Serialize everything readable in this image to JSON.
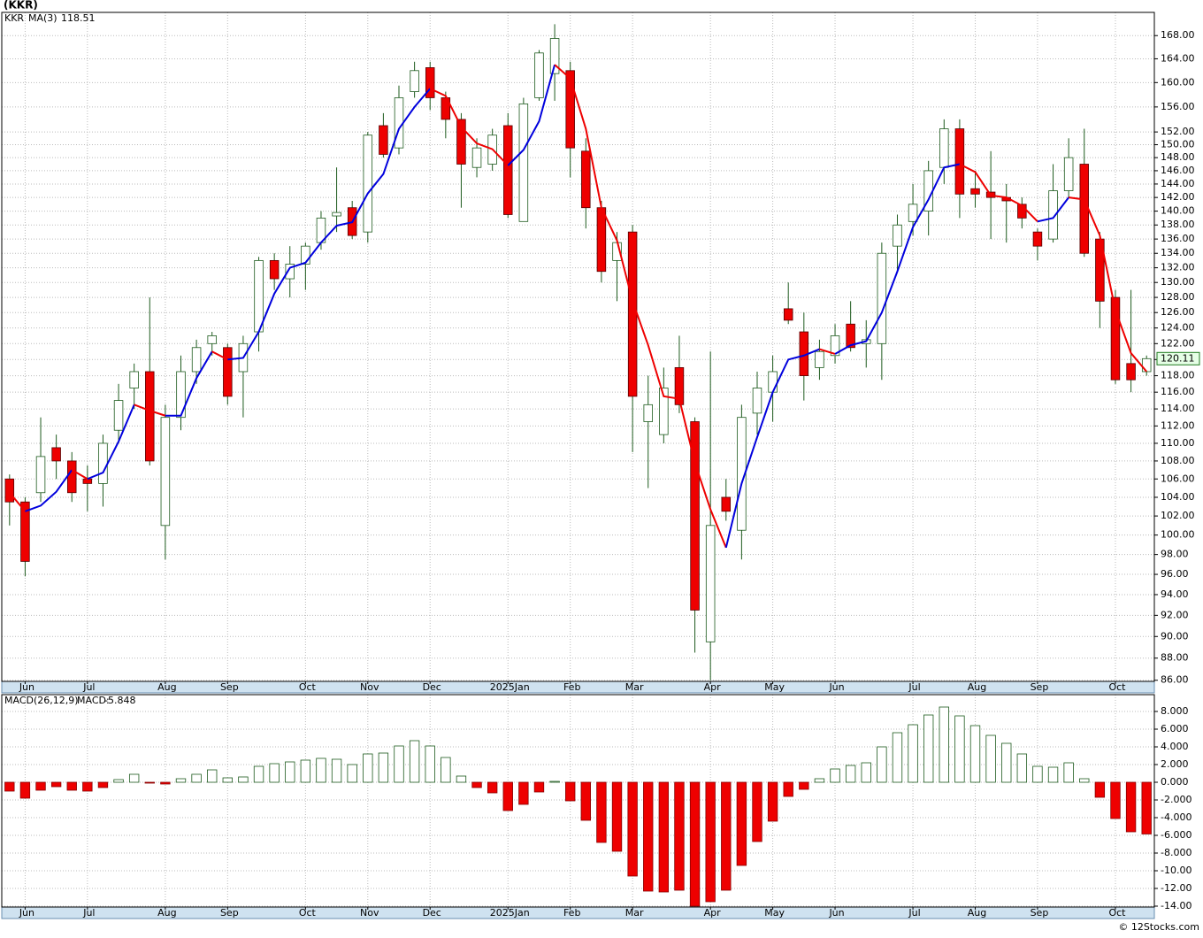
{
  "title": "(KKR)",
  "footer": "© 12Stocks.com",
  "chart_data": [
    {
      "type": "candlestick",
      "symbol": "KKR",
      "categories": [
        null,
        "Jun",
        null,
        null,
        null,
        "Jul",
        null,
        null,
        null,
        null,
        "Aug",
        null,
        null,
        null,
        "Sep",
        null,
        null,
        null,
        null,
        "Oct",
        null,
        null,
        null,
        "Nov",
        null,
        null,
        null,
        "Dec",
        null,
        null,
        null,
        null,
        "2025Jan",
        null,
        null,
        null,
        "Feb",
        null,
        null,
        null,
        "Mar",
        null,
        null,
        null,
        null,
        "Apr",
        null,
        null,
        null,
        "May",
        null,
        null,
        null,
        "Jun",
        null,
        null,
        null,
        null,
        "Jul",
        null,
        null,
        null,
        "Aug",
        null,
        null,
        null,
        "Sep",
        null,
        null,
        null,
        null,
        "Oct",
        null,
        null
      ],
      "open": [
        106,
        103.5,
        104.5,
        109.5,
        108,
        106,
        105.5,
        111.5,
        116.5,
        118.5,
        101,
        113,
        118.5,
        122,
        121.5,
        118.5,
        123.5,
        133,
        130.5,
        132.5,
        135.5,
        139.3,
        140.5,
        137,
        153,
        149.5,
        158.5,
        162.5,
        157.5,
        154,
        146.5,
        147,
        153,
        138.5,
        157.5,
        161.5,
        162,
        149,
        140.5,
        133,
        137,
        112.5,
        111,
        119,
        112.5,
        89.5,
        104,
        100.5,
        113.5,
        116,
        126.5,
        123.5,
        119,
        120.5,
        124.5,
        122,
        122,
        135,
        138.5,
        140,
        146.5,
        152.5,
        143.3,
        142.8,
        142,
        141,
        137,
        136,
        143,
        147,
        136,
        128,
        119.5,
        118.5
      ],
      "high": [
        106.5,
        104,
        113,
        111,
        109,
        107.5,
        111,
        117,
        119.5,
        128,
        114.5,
        120.5,
        122.5,
        123.5,
        122,
        123,
        133.5,
        134,
        135,
        135.5,
        140,
        146.5,
        141.5,
        152,
        155,
        159.5,
        163.5,
        163.5,
        158.5,
        155,
        151,
        152.5,
        155,
        157.5,
        165.5,
        170,
        163.5,
        151,
        141.5,
        137,
        138,
        118,
        119,
        123,
        113,
        121,
        106,
        114.5,
        118.5,
        120.5,
        130,
        126,
        122.5,
        124.5,
        127.5,
        125,
        135.5,
        139.5,
        144,
        147.5,
        154,
        154,
        146,
        149,
        144,
        142,
        137.5,
        147,
        151,
        152.5,
        137,
        129,
        129,
        120.5
      ],
      "low": [
        101,
        95.8,
        103.5,
        106,
        103.5,
        102.5,
        103,
        110,
        114,
        107.5,
        97.5,
        111.5,
        117,
        120.5,
        114.5,
        113,
        121,
        129,
        128,
        129,
        134.5,
        137,
        136,
        135.5,
        148,
        148.5,
        157.5,
        155.5,
        151,
        140.5,
        145,
        146,
        139,
        138.5,
        157,
        157,
        145,
        137.5,
        130,
        127.5,
        109,
        105,
        110,
        113.5,
        88.5,
        86,
        101.5,
        97.5,
        111,
        112.5,
        124.5,
        115,
        117.5,
        119.5,
        121,
        119,
        117.5,
        131.5,
        136.5,
        136.5,
        144,
        139,
        140.5,
        136,
        135.5,
        137.5,
        133,
        135.5,
        142,
        133.5,
        124,
        117,
        116,
        118
      ],
      "close": [
        103.5,
        97.3,
        108.5,
        108,
        104.5,
        105.5,
        110,
        115,
        118.5,
        108,
        113,
        118.5,
        121.5,
        123,
        115.5,
        122,
        133,
        130.5,
        132.5,
        135,
        139,
        139.8,
        136.5,
        151.5,
        148.5,
        157.5,
        162,
        157.5,
        154,
        147,
        149.5,
        151.5,
        139.5,
        156.5,
        165,
        167.5,
        149.5,
        140.5,
        131.5,
        135.5,
        115.5,
        114.5,
        116.5,
        114.5,
        92.5,
        101,
        102.5,
        113,
        116.5,
        118.5,
        125,
        118,
        121,
        123,
        121.5,
        122.5,
        134,
        138,
        141,
        146,
        152.5,
        142.5,
        142.5,
        142,
        141.5,
        139,
        135,
        143,
        148,
        134,
        127.5,
        117.5,
        117.5,
        120.11
      ],
      "up_color": "#ffffff",
      "down_color": "#ee0000",
      "edge_color": "#1e5b1e",
      "ma": {
        "name": "MA(3)",
        "up_color": "#0000dd",
        "down_color": "#ee0000",
        "values": [
          104.5,
          102.5,
          103.1,
          104.6,
          107.0,
          106.0,
          106.7,
          110.2,
          114.5,
          113.8,
          113.2,
          113.2,
          117.7,
          121.0,
          120.0,
          120.2,
          123.5,
          128.5,
          132.0,
          132.7,
          135.5,
          137.9,
          138.4,
          142.6,
          145.5,
          152.5,
          156.0,
          159.0,
          157.8,
          152.8,
          150.2,
          149.3,
          146.8,
          149.2,
          153.7,
          163.0,
          160.7,
          152.5,
          140.5,
          135.8,
          127.5,
          121.8,
          115.5,
          115.2,
          107.8,
          102.7,
          98.7,
          105.5,
          110.7,
          116.0,
          120.0,
          120.5,
          121.3,
          120.7,
          121.8,
          122.3,
          126.0,
          131.5,
          137.7,
          141.7,
          146.5,
          147.0,
          145.8,
          142.3,
          142.0,
          140.8,
          138.5,
          139.0,
          142.0,
          141.7,
          136.5,
          126.3,
          120.8,
          118.51
        ]
      },
      "log_y": true,
      "grid": true,
      "ylim": [
        85.9,
        172.1
      ],
      "yticks": [
        {
          "value": 86,
          "label": "86.00"
        },
        {
          "value": 88,
          "label": "88.00"
        },
        {
          "value": 90,
          "label": "90.00"
        },
        {
          "value": 92,
          "label": "92.00"
        },
        {
          "value": 94,
          "label": "94.00"
        },
        {
          "value": 96,
          "label": "96.00"
        },
        {
          "value": 98,
          "label": "98.00"
        },
        {
          "value": 100,
          "label": "100.00"
        },
        {
          "value": 102,
          "label": "102.00"
        },
        {
          "value": 104,
          "label": "104.00"
        },
        {
          "value": 106,
          "label": "106.00"
        },
        {
          "value": 108,
          "label": "108.00"
        },
        {
          "value": 110,
          "label": "110.00"
        },
        {
          "value": 112,
          "label": "112.00"
        },
        {
          "value": 114,
          "label": "114.00"
        },
        {
          "value": 116,
          "label": "116.00"
        },
        {
          "value": 118,
          "label": "118.00"
        },
        {
          "value": 120,
          "label": "120.00"
        },
        {
          "value": 122,
          "label": "122.00"
        },
        {
          "value": 124,
          "label": "124.00"
        },
        {
          "value": 126,
          "label": "126.00"
        },
        {
          "value": 128,
          "label": "128.00"
        },
        {
          "value": 130,
          "label": "130.00"
        },
        {
          "value": 132,
          "label": "132.00"
        },
        {
          "value": 134,
          "label": "134.00"
        },
        {
          "value": 136,
          "label": "136.00"
        },
        {
          "value": 138,
          "label": "138.00"
        },
        {
          "value": 140,
          "label": "140.00"
        },
        {
          "value": 142,
          "label": "142.00"
        },
        {
          "value": 144,
          "label": "144.00"
        },
        {
          "value": 146,
          "label": "146.00"
        },
        {
          "value": 148,
          "label": "148.00"
        },
        {
          "value": 150,
          "label": "150.00"
        },
        {
          "value": 152,
          "label": "152.00"
        },
        {
          "value": 156,
          "label": "156.00"
        },
        {
          "value": 160,
          "label": "160.00"
        },
        {
          "value": 164,
          "label": "164.00"
        },
        {
          "value": 168,
          "label": "168.00"
        }
      ]
    },
    {
      "type": "histogram",
      "name": "MACD(26,12,9)",
      "value_prefix": "MACD:",
      "categories": [
        null,
        "Jun",
        null,
        null,
        null,
        "Jul",
        null,
        null,
        null,
        null,
        "Aug",
        null,
        null,
        null,
        "Sep",
        null,
        null,
        null,
        null,
        "Oct",
        null,
        null,
        null,
        "Nov",
        null,
        null,
        null,
        "Dec",
        null,
        null,
        null,
        null,
        "2025Jan",
        null,
        null,
        null,
        "Feb",
        null,
        null,
        null,
        "Mar",
        null,
        null,
        null,
        null,
        "Apr",
        null,
        null,
        null,
        "May",
        null,
        null,
        null,
        "Jun",
        null,
        null,
        null,
        null,
        "Jul",
        null,
        null,
        null,
        "Aug",
        null,
        null,
        null,
        "Sep",
        null,
        null,
        null,
        null,
        "Oct",
        null,
        null
      ],
      "values": [
        -1.0,
        -1.8,
        -0.9,
        -0.5,
        -0.9,
        -1.0,
        -0.6,
        0.3,
        0.9,
        -0.1,
        -0.2,
        0.4,
        0.9,
        1.4,
        0.5,
        0.6,
        1.8,
        2.1,
        2.3,
        2.5,
        2.7,
        2.6,
        2.0,
        3.2,
        3.3,
        4.1,
        4.7,
        4.1,
        2.8,
        0.7,
        -0.6,
        -1.2,
        -3.2,
        -2.5,
        -1.1,
        0.1,
        -2.1,
        -4.3,
        -6.8,
        -7.8,
        -10.6,
        -12.3,
        -12.4,
        -12.2,
        -14.0,
        -13.5,
        -12.2,
        -9.4,
        -6.7,
        -4.4,
        -1.6,
        -0.8,
        0.4,
        1.5,
        1.9,
        2.2,
        4.0,
        5.6,
        6.5,
        7.6,
        8.5,
        7.5,
        6.4,
        5.3,
        4.4,
        3.2,
        1.8,
        1.7,
        2.2,
        0.4,
        -1.7,
        -4.1,
        -5.6,
        -5.848
      ],
      "pos_color": "#ffffff",
      "neg_color": "#ee0000",
      "edge_color": "#1e5b1e",
      "grid": true,
      "ylim": [
        -14.1,
        9.9
      ],
      "yticks": [
        {
          "value": 8,
          "label": "8.000"
        },
        {
          "value": 6,
          "label": "6.000"
        },
        {
          "value": 4,
          "label": "4.000"
        },
        {
          "value": 2,
          "label": "2.000"
        },
        {
          "value": 0,
          "label": "0.000"
        },
        {
          "value": -2,
          "label": "-2.000"
        },
        {
          "value": -4,
          "label": "-4.000"
        },
        {
          "value": -6,
          "label": "-6.000"
        },
        {
          "value": -8,
          "label": "-8.000"
        },
        {
          "value": -10,
          "label": "-10.00"
        },
        {
          "value": -12,
          "label": "-12.00"
        },
        {
          "value": -14,
          "label": "-14.00"
        }
      ]
    }
  ]
}
